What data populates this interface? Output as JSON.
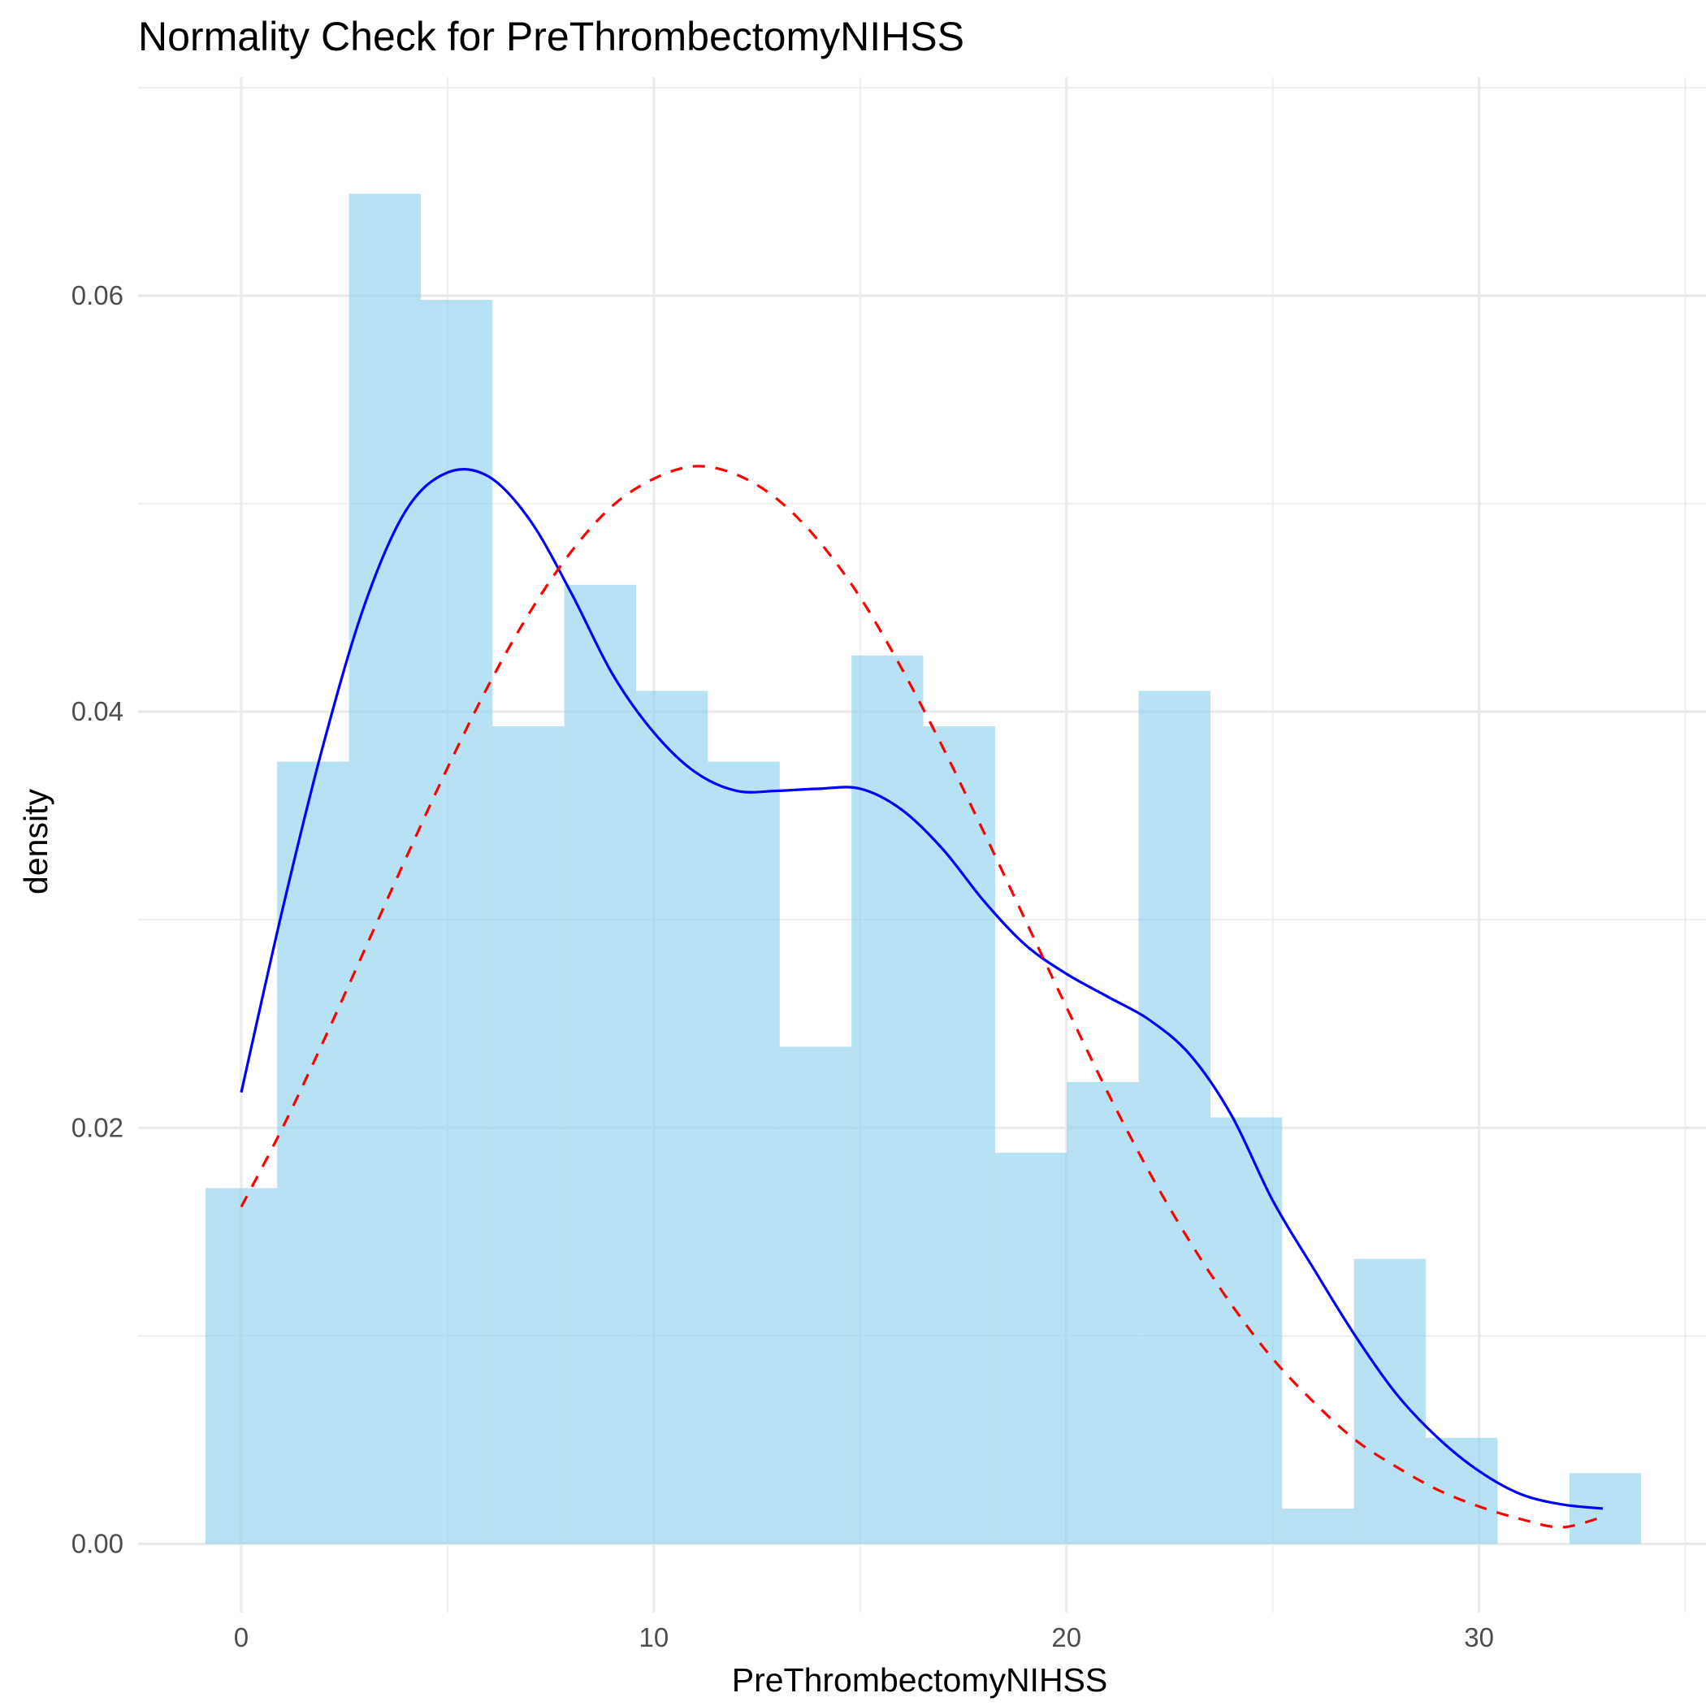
{
  "chart_data": {
    "type": "bar",
    "title": "Normality Check for PreThrombectomyNIHSS",
    "xlabel": "PreThrombectomyNIHSS",
    "ylabel": "density",
    "xlim": [
      -2.5,
      35.5
    ],
    "ylim": [
      -0.0033,
      0.0705
    ],
    "x_ticks": [
      0,
      10,
      20,
      30
    ],
    "x_tick_labels": [
      "0",
      "10",
      "20",
      "30"
    ],
    "y_ticks": [
      0.0,
      0.02,
      0.04,
      0.06
    ],
    "y_tick_labels": [
      "0.00",
      "0.02",
      "0.04",
      "0.06"
    ],
    "grid": true,
    "histogram": {
      "color": "#87ceeb",
      "opacity": 0.6,
      "bins": [
        {
          "x0": -0.87,
          "x1": 0.87,
          "density": 0.0171
        },
        {
          "x0": 0.87,
          "x1": 2.61,
          "density": 0.0376
        },
        {
          "x0": 2.61,
          "x1": 4.35,
          "density": 0.0649
        },
        {
          "x0": 4.35,
          "x1": 6.09,
          "density": 0.0598
        },
        {
          "x0": 6.09,
          "x1": 7.83,
          "density": 0.0393
        },
        {
          "x0": 7.83,
          "x1": 9.57,
          "density": 0.0461
        },
        {
          "x0": 9.57,
          "x1": 11.31,
          "density": 0.041
        },
        {
          "x0": 11.31,
          "x1": 13.05,
          "density": 0.0376
        },
        {
          "x0": 13.05,
          "x1": 14.79,
          "density": 0.0239
        },
        {
          "x0": 14.79,
          "x1": 16.53,
          "density": 0.0427
        },
        {
          "x0": 16.53,
          "x1": 18.27,
          "density": 0.0393
        },
        {
          "x0": 18.27,
          "x1": 20.01,
          "density": 0.0188
        },
        {
          "x0": 20.01,
          "x1": 21.75,
          "density": 0.0222
        },
        {
          "x0": 21.75,
          "x1": 23.49,
          "density": 0.041
        },
        {
          "x0": 23.49,
          "x1": 25.23,
          "density": 0.0205
        },
        {
          "x0": 25.23,
          "x1": 26.97,
          "density": 0.0017
        },
        {
          "x0": 26.97,
          "x1": 28.71,
          "density": 0.0137
        },
        {
          "x0": 28.71,
          "x1": 30.45,
          "density": 0.0051
        },
        {
          "x0": 30.45,
          "x1": 32.19,
          "density": 0.0
        },
        {
          "x0": 32.19,
          "x1": 33.93,
          "density": 0.0034
        }
      ]
    },
    "series": [
      {
        "kind": "kernel-density",
        "color": "#0000ff",
        "dash": "solid",
        "x": [
          0,
          1,
          2,
          3,
          4,
          5,
          6,
          7,
          8,
          9,
          10,
          11,
          12,
          13,
          14,
          15,
          16,
          17,
          18,
          19,
          20,
          21,
          22,
          23,
          24,
          25,
          26,
          27,
          28,
          29,
          30,
          31,
          32,
          33
        ],
        "values": [
          0.0217,
          0.0305,
          0.0385,
          0.0452,
          0.0497,
          0.0515,
          0.0513,
          0.0492,
          0.0457,
          0.0418,
          0.039,
          0.0371,
          0.0362,
          0.0362,
          0.0363,
          0.0363,
          0.0353,
          0.0334,
          0.0309,
          0.0288,
          0.0274,
          0.0263,
          0.0252,
          0.0235,
          0.0206,
          0.0165,
          0.0132,
          0.01,
          0.0072,
          0.0051,
          0.0035,
          0.0024,
          0.0019,
          0.0017
        ]
      },
      {
        "kind": "normal-curve",
        "color": "#ff0000",
        "dash": "dashed",
        "x": [
          0,
          1,
          2,
          3,
          4,
          5,
          6,
          7,
          8,
          9,
          10,
          11,
          12,
          13,
          14,
          15,
          16,
          17,
          18,
          19,
          20,
          21,
          22,
          23,
          24,
          25,
          26,
          27,
          28,
          29,
          30,
          31,
          32,
          33
        ],
        "values": [
          0.0162,
          0.02,
          0.0242,
          0.0286,
          0.033,
          0.0373,
          0.0413,
          0.0448,
          0.0477,
          0.0499,
          0.0512,
          0.0518,
          0.0514,
          0.0502,
          0.0482,
          0.0455,
          0.0421,
          0.0383,
          0.0342,
          0.03,
          0.0258,
          0.0217,
          0.0179,
          0.0145,
          0.0115,
          0.0089,
          0.0068,
          0.005,
          0.0037,
          0.0026,
          0.0018,
          0.0012,
          0.0008,
          0.0013
        ]
      }
    ]
  }
}
